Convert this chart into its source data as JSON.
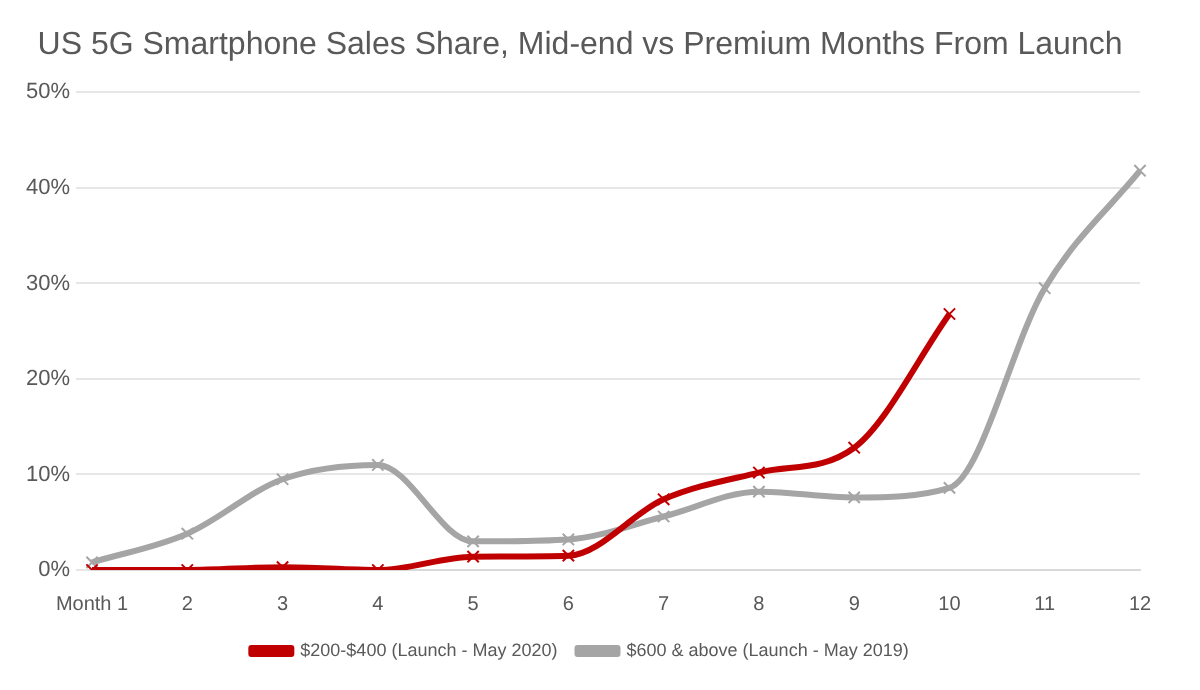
{
  "chart_data": {
    "type": "line",
    "title": "US 5G Smartphone Sales Share, Mid-end vs Premium Months From Launch",
    "categories": [
      "Month 1",
      "2",
      "3",
      "4",
      "5",
      "6",
      "7",
      "8",
      "9",
      "10",
      "11",
      "12"
    ],
    "series": [
      {
        "name": "$200-$400 (Launch - May 2020)",
        "color": "#c00000",
        "values": [
          0,
          0,
          0.3,
          0,
          1.4,
          1.5,
          7.4,
          10.2,
          12.8,
          26.8,
          null,
          null
        ]
      },
      {
        "name": "$600 & above (Launch - May 2019)",
        "color": "#a5a5a5",
        "values": [
          0.8,
          3.8,
          9.5,
          11,
          3,
          3.2,
          5.6,
          8.2,
          7.6,
          8.6,
          29.5,
          41.8
        ]
      }
    ],
    "ylim": [
      0,
      50
    ],
    "yticks": [
      {
        "value": 0,
        "label": "0%"
      },
      {
        "value": 10,
        "label": "10%"
      },
      {
        "value": 20,
        "label": "20%"
      },
      {
        "value": 30,
        "label": "30%"
      },
      {
        "value": 40,
        "label": "40%"
      },
      {
        "value": 50,
        "label": "50%"
      }
    ],
    "grid": "y",
    "legend": "bottom",
    "marker": "cross",
    "line_style": "solid"
  }
}
